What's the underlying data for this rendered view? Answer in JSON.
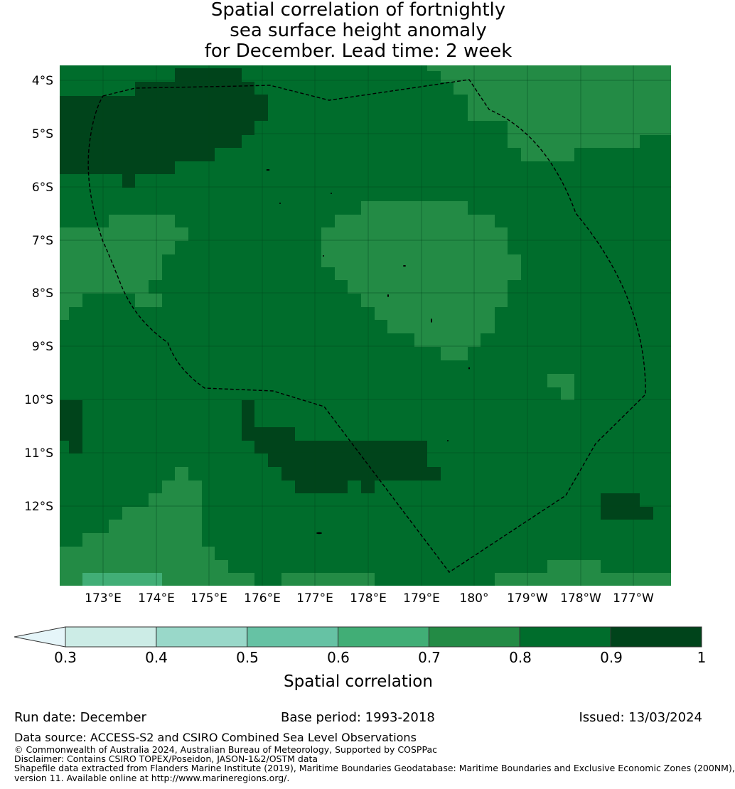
{
  "title": {
    "line1": "Spatial correlation of fortnightly",
    "line2": "sea surface height anomaly",
    "line3": "for December. Lead time: 2 week"
  },
  "map": {
    "lat_labels": [
      "4°S",
      "5°S",
      "6°S",
      "7°S",
      "8°S",
      "9°S",
      "10°S",
      "11°S",
      "12°S"
    ],
    "lon_labels": [
      "173°E",
      "174°E",
      "175°E",
      "176°E",
      "177°E",
      "178°E",
      "179°E",
      "180°",
      "179°W",
      "178°W",
      "177°W"
    ],
    "lat_range": [
      -3.7,
      -13.5
    ],
    "lon_range": [
      172.2,
      183.7
    ],
    "dominant_correlation_class": "0.8-0.9",
    "regions": [
      {
        "name": "north-west high",
        "class": "0.9-1"
      },
      {
        "name": "north-east moderate",
        "class": "0.7-0.8"
      },
      {
        "name": "central moderate",
        "class": "0.7-0.8"
      },
      {
        "name": "west moderate",
        "class": "0.7-0.8"
      },
      {
        "name": "south-central high",
        "class": "0.9-1"
      },
      {
        "name": "south-west moderate",
        "class": "0.7-0.8"
      },
      {
        "name": "south-west low",
        "class": "0.6-0.7"
      }
    ]
  },
  "colorbar": {
    "ticks": [
      "0.3",
      "0.4",
      "0.5",
      "0.6",
      "0.7",
      "0.8",
      "0.9",
      "1"
    ],
    "colors": [
      "#ccece6",
      "#99d8c9",
      "#66c2a4",
      "#41ae76",
      "#238b45",
      "#006d2c",
      "#00441b"
    ],
    "extend_color": "#e5f5f9",
    "label": "Spatial correlation"
  },
  "footer": {
    "run_date": "Run date: December",
    "base_period": "Base period: 1993-2018",
    "issued": "Issued: 13/03/2024",
    "data_source": "Data source: ACCESS-S2 and CSIRO Combined Sea Level Observations",
    "copyright": "© Commonwealth of Australia 2024, Australian Bureau of Meteorology, Supported by COSPPac",
    "disclaimer": "Disclaimer: Contains CSIRO TOPEX/Poseidon, JASON-1&2/OSTM data",
    "shapefile": "Shapefile data extracted from Flanders Marine Institute (2019), Maritime Boundaries Geodatabase: Maritime Boundaries and Exclusive Economic Zones (200NM),",
    "version": "version 11. Available online at http://www.marineregions.org/."
  }
}
